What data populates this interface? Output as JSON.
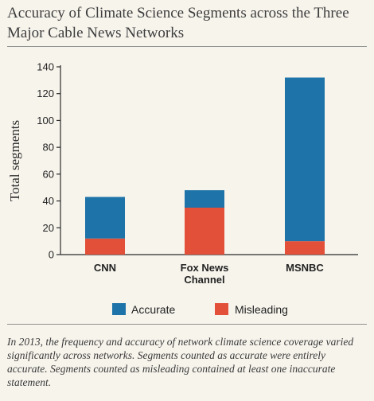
{
  "title": "Accuracy of Climate Science Segments across the Three Major Cable News Networks",
  "caption": "In 2013, the frequency and accuracy of network climate science coverage varied significantly across networks. Segments counted as accurate were entirely accurate. Segments counted as misleading contained at least one inaccurate statement.",
  "colors": {
    "Accurate": "#1e74a8",
    "Misleading": "#e2503a"
  },
  "chart_data": {
    "type": "bar",
    "stacked": true,
    "categories": [
      [
        "CNN"
      ],
      [
        "Fox News",
        "Channel"
      ],
      [
        "MSNBC"
      ]
    ],
    "series": [
      {
        "name": "Misleading",
        "values": [
          12,
          35,
          10
        ]
      },
      {
        "name": "Accurate",
        "values": [
          31,
          13,
          122
        ]
      }
    ],
    "xlabel": "",
    "ylabel": "Total segments",
    "ylim": [
      0,
      140
    ],
    "yticks": [
      0,
      20,
      40,
      60,
      80,
      100,
      120,
      140
    ],
    "grid": false,
    "legend": {
      "position": "bottom",
      "entries": [
        "Accurate",
        "Misleading"
      ]
    }
  }
}
